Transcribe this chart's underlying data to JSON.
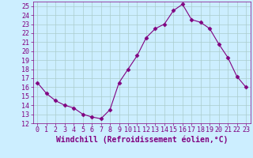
{
  "x": [
    0,
    1,
    2,
    3,
    4,
    5,
    6,
    7,
    8,
    9,
    10,
    11,
    12,
    13,
    14,
    15,
    16,
    17,
    18,
    19,
    20,
    21,
    22,
    23
  ],
  "y": [
    16.5,
    15.3,
    14.5,
    14.0,
    13.7,
    13.0,
    12.7,
    12.5,
    13.5,
    16.5,
    18.0,
    19.5,
    21.5,
    22.5,
    23.0,
    24.5,
    25.2,
    23.5,
    23.2,
    22.5,
    20.8,
    19.3,
    17.2,
    16.0
  ],
  "line_color": "#800080",
  "marker": "D",
  "marker_size": 2.5,
  "background_color": "#cceeff",
  "grid_color": "#aacccc",
  "xlabel": "Windchill (Refroidissement éolien,°C)",
  "ylim": [
    12,
    25.5
  ],
  "xlim": [
    -0.5,
    23.5
  ],
  "yticks": [
    12,
    13,
    14,
    15,
    16,
    17,
    18,
    19,
    20,
    21,
    22,
    23,
    24,
    25
  ],
  "xticks": [
    0,
    1,
    2,
    3,
    4,
    5,
    6,
    7,
    8,
    9,
    10,
    11,
    12,
    13,
    14,
    15,
    16,
    17,
    18,
    19,
    20,
    21,
    22,
    23
  ],
  "tick_color": "#800080",
  "label_color": "#800080",
  "xlabel_fontsize": 7.0,
  "tick_fontsize": 6.0
}
